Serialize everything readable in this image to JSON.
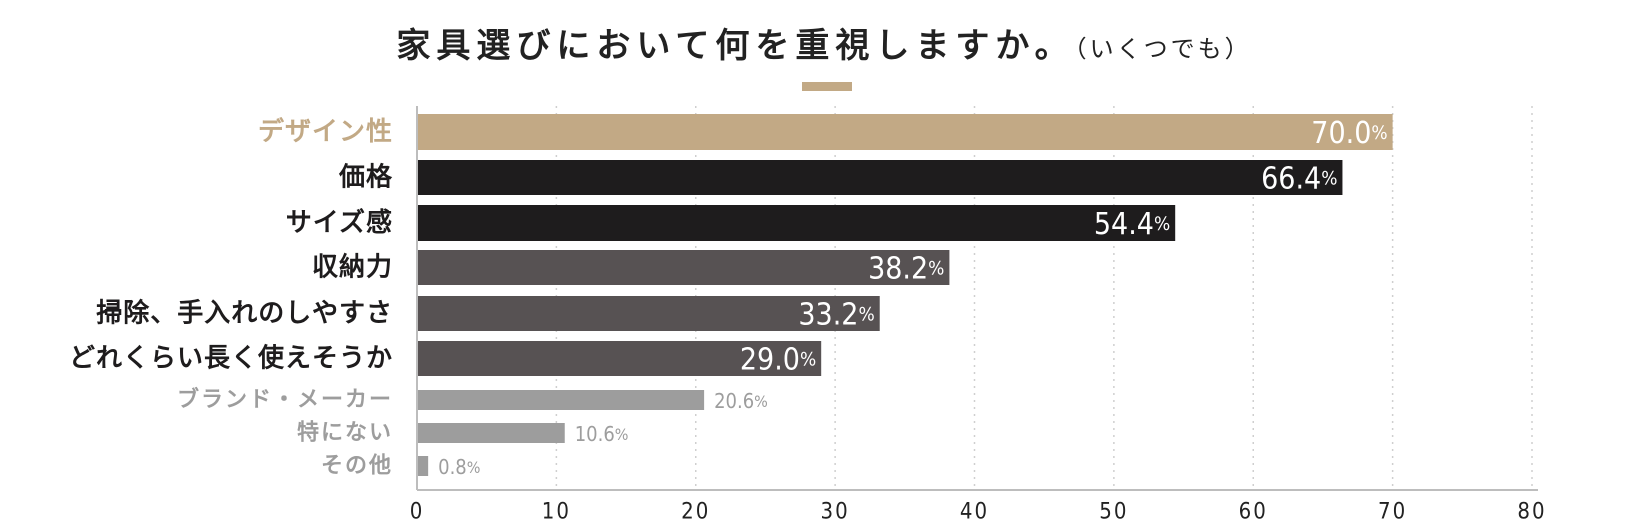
{
  "title": "家具選びにおいて何を重視しますか。",
  "subtitle": "（いくつでも）",
  "colors": {
    "accent": "#c2a985",
    "dark": "#1e1c1d",
    "mid": "#575253",
    "light": "#9d9d9d",
    "text_dark": "#1e1c1d",
    "text_light": "#9d9d9d",
    "text_accent": "#c2a985"
  },
  "chart_data": {
    "type": "bar",
    "orientation": "horizontal",
    "categories": [
      "デザイン性",
      "価格",
      "サイズ感",
      "収納力",
      "掃除、手入れのしやすさ",
      "どれくらい長く使えそうか",
      "ブランド・メーカー",
      "特にない",
      "その他"
    ],
    "values": [
      70.0,
      66.4,
      54.4,
      38.2,
      33.2,
      29.0,
      20.6,
      10.6,
      0.8
    ],
    "value_labels": [
      "70.0",
      "66.4",
      "54.4",
      "38.2",
      "33.2",
      "29.0",
      "20.6",
      "10.6",
      "0.8"
    ],
    "value_unit": "%",
    "styles": [
      "accent",
      "dark",
      "dark",
      "mid",
      "mid",
      "mid",
      "light",
      "light",
      "light"
    ],
    "x_ticks": [
      "0",
      "10",
      "20",
      "30",
      "40",
      "50",
      "60",
      "70",
      "80"
    ],
    "xlim": [
      0,
      80
    ],
    "grid": true
  }
}
